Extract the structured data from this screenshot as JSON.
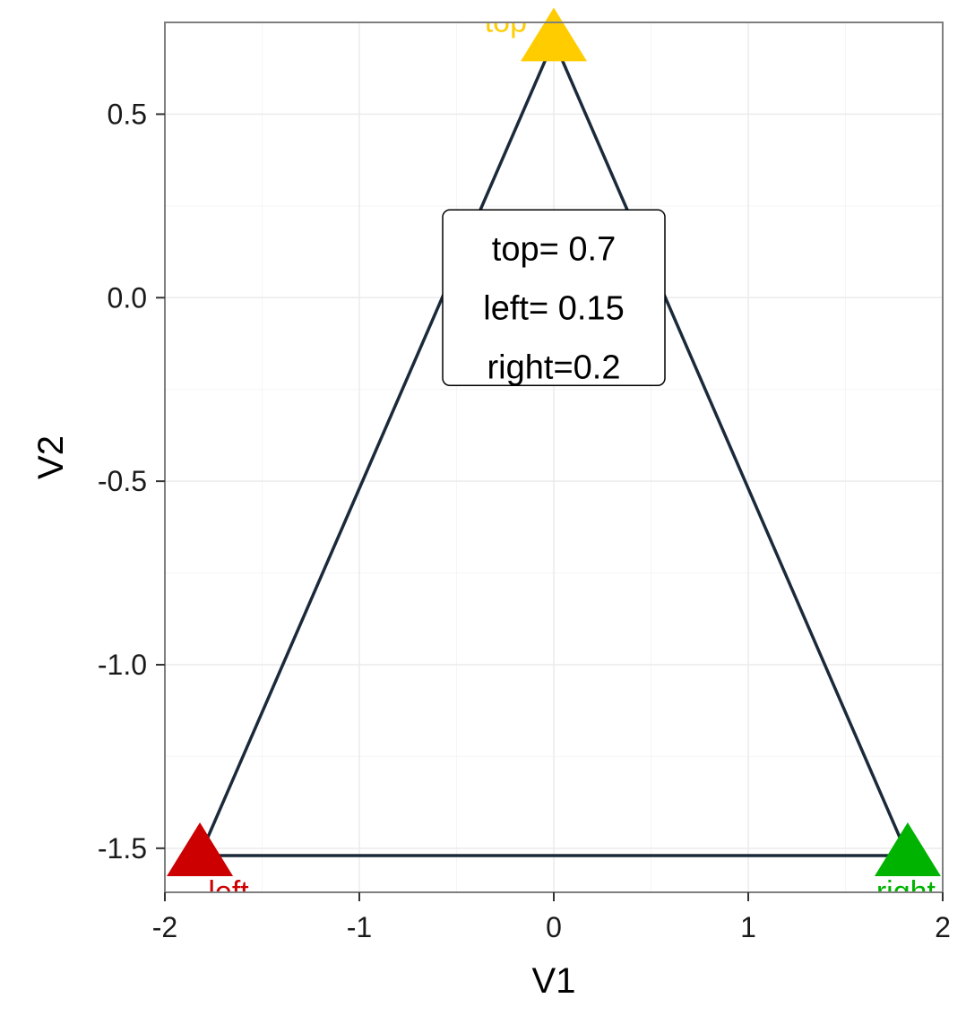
{
  "chart_data": {
    "type": "scatter",
    "xlabel": "V1",
    "ylabel": "V2",
    "xlim": [
      -2,
      2
    ],
    "ylim": [
      -1.62,
      0.75
    ],
    "x_ticks": [
      -2,
      -1,
      0,
      1,
      2
    ],
    "x_tick_labels": [
      "-2",
      "-1",
      "0",
      "1",
      "2"
    ],
    "y_ticks": [
      0.5,
      0.0,
      -0.5,
      -1.0,
      -1.5
    ],
    "y_tick_labels": [
      "0.5",
      "0.0",
      "-0.5",
      "-1.0",
      "-1.5"
    ],
    "grid": true,
    "points": [
      {
        "label": "top",
        "x": 0.0,
        "y": 0.7,
        "color": "#ffcc00"
      },
      {
        "label": "left",
        "x": -1.82,
        "y": -1.52,
        "color": "#cc0000"
      },
      {
        "label": "right",
        "x": 1.82,
        "y": -1.52,
        "color": "#00b300"
      }
    ],
    "line_color": "#1b2a3a",
    "annotation_box": {
      "lines": [
        "top= 0.7",
        "left= 0.15",
        "right=0.2"
      ],
      "x": 0.0,
      "y": 0.0
    }
  }
}
